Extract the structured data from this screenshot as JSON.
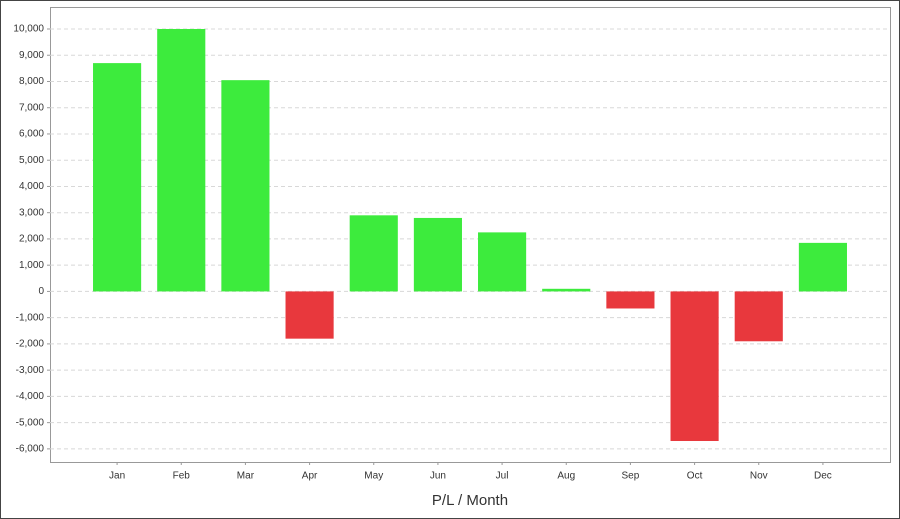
{
  "chart_data": {
    "type": "bar",
    "x_label": "P/L / Month",
    "categories": [
      "Jan",
      "Feb",
      "Mar",
      "Apr",
      "May",
      "Jun",
      "Jul",
      "Aug",
      "Sep",
      "Oct",
      "Nov",
      "Dec"
    ],
    "values": [
      8700,
      10000,
      8050,
      -1800,
      2900,
      2800,
      2250,
      100,
      -650,
      -5700,
      -1900,
      1850
    ],
    "positive_color": "#3deb3d",
    "negative_color": "#e8383d",
    "ylim": [
      -6500,
      10800
    ],
    "yticks": [
      {
        "value": -6000,
        "label": "-6,000"
      },
      {
        "value": -5000,
        "label": "-5,000"
      },
      {
        "value": -4000,
        "label": "-4,000"
      },
      {
        "value": -3000,
        "label": "-3,000"
      },
      {
        "value": -2000,
        "label": "-2,000"
      },
      {
        "value": -1000,
        "label": "-1,000"
      },
      0,
      {
        "value": 1000,
        "label": "1,000"
      },
      {
        "value": 2000,
        "label": "2,000"
      },
      {
        "value": 3000,
        "label": "3,000"
      },
      {
        "value": 4000,
        "label": "4,000"
      },
      {
        "value": 5000,
        "label": "5,000"
      },
      {
        "value": 6000,
        "label": "6,000"
      },
      {
        "value": 7000,
        "label": "7,000"
      },
      {
        "value": 8000,
        "label": "8,000"
      },
      {
        "value": 9000,
        "label": "9,000"
      },
      {
        "value": 10000,
        "label": "10,000"
      }
    ],
    "grid": true
  }
}
